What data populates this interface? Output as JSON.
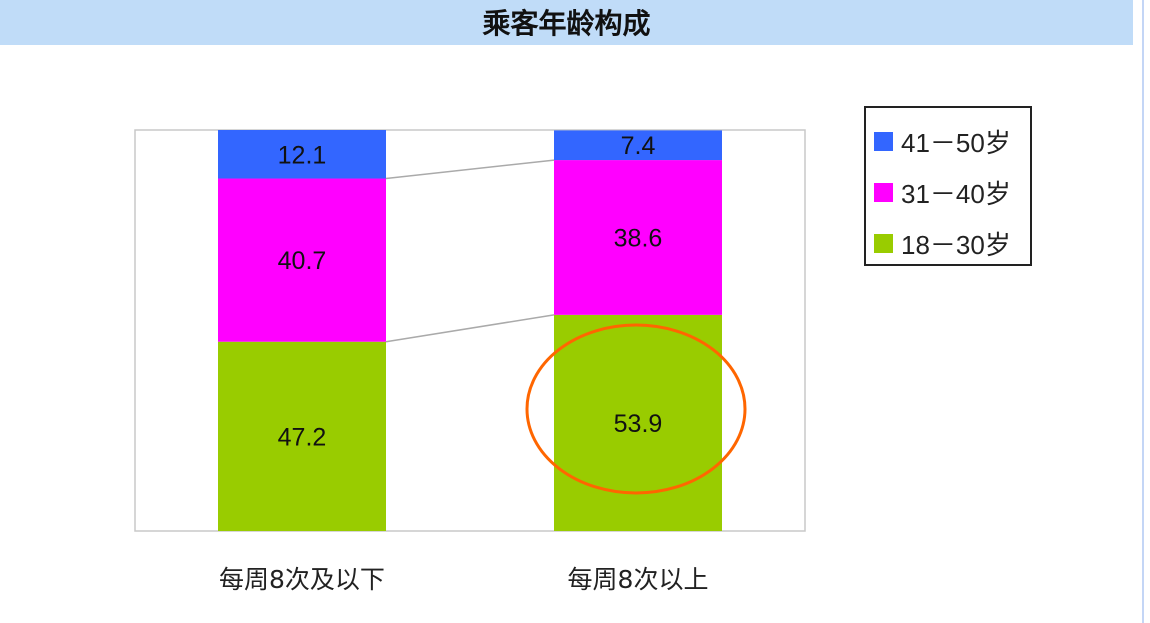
{
  "chart_data": {
    "type": "bar",
    "stacked": true,
    "title": "乘客年龄构成",
    "categories": [
      "每周8次及以下",
      "每周8次以上"
    ],
    "series": [
      {
        "name": "18－30岁",
        "color": "#99cc00",
        "values": [
          47.2,
          53.9
        ]
      },
      {
        "name": "31－40岁",
        "color": "#ff00ff",
        "values": [
          40.7,
          38.6
        ]
      },
      {
        "name": "41－50岁",
        "color": "#3366ff",
        "values": [
          12.1,
          7.4
        ]
      }
    ],
    "ylim": [
      0,
      100
    ],
    "grid": false,
    "data_labels": true,
    "series_connector_lines": true,
    "legend_position": "right",
    "annotation": {
      "type": "ellipse",
      "target": "53.9",
      "color": "#ff6600"
    }
  }
}
